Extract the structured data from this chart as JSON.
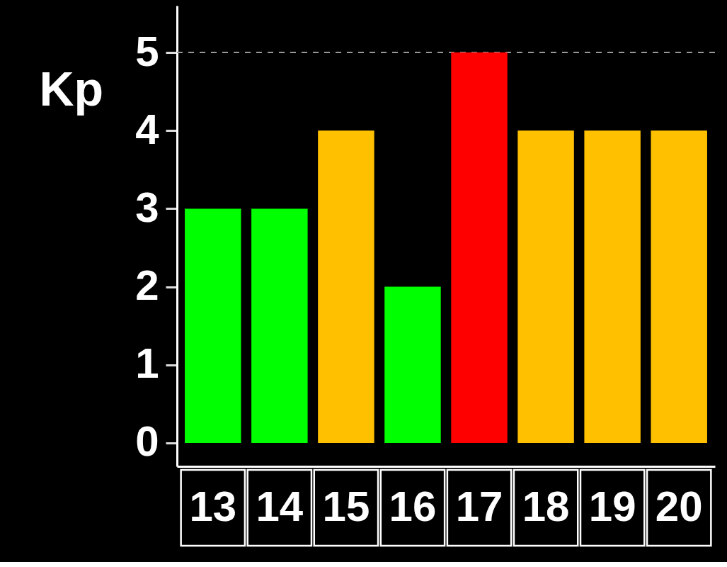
{
  "chart_data": {
    "type": "bar",
    "ylabel": "Kp",
    "categories": [
      "13",
      "14",
      "15",
      "16",
      "17",
      "18",
      "19",
      "20"
    ],
    "values": [
      3,
      3,
      4,
      2,
      5,
      4,
      4,
      4
    ],
    "colors": [
      "#00ff00",
      "#00ff00",
      "#ffc000",
      "#00ff00",
      "#ff0000",
      "#ffc000",
      "#ffc000",
      "#ffc000"
    ],
    "ylim": [
      -0.3,
      5.6
    ],
    "yticks": [
      0,
      1,
      2,
      3,
      4,
      5
    ],
    "ref_lines": [
      {
        "axis": "y",
        "value": 5,
        "color": "#999999",
        "line_style": "dashed"
      }
    ],
    "grid": false
  }
}
